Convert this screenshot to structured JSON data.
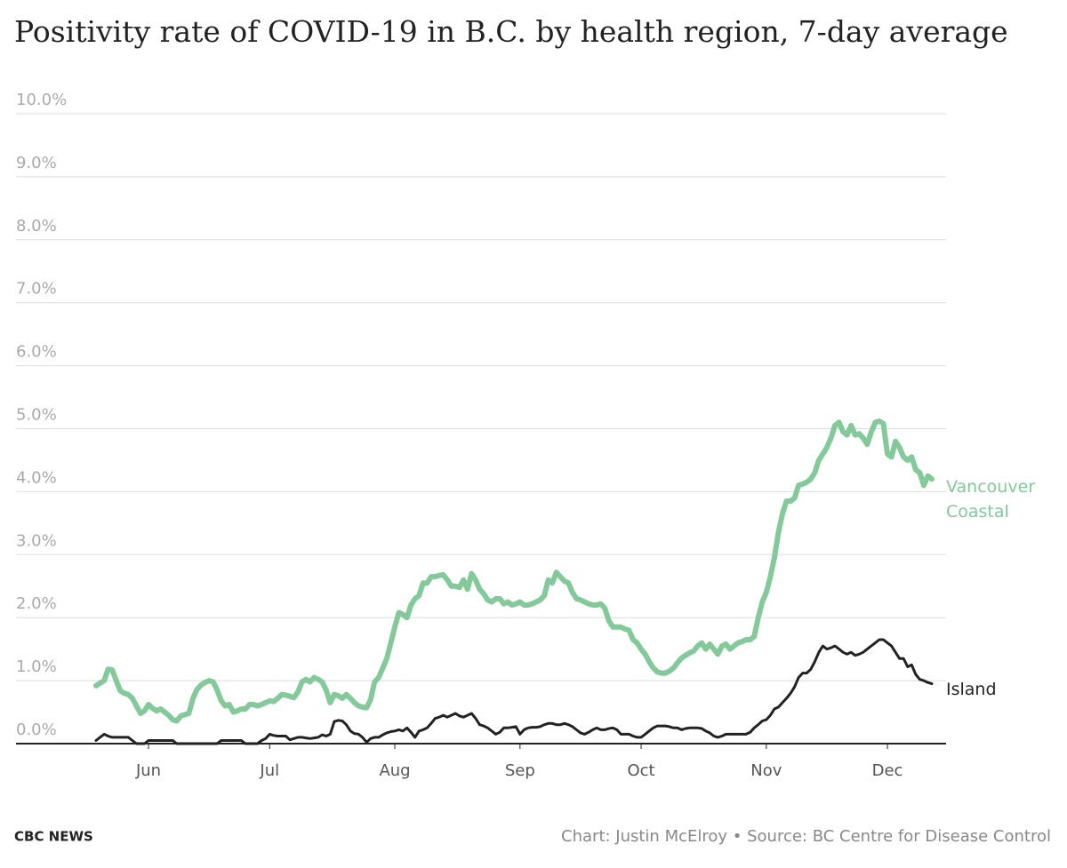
{
  "chart_data": {
    "type": "line",
    "title": "Positivity rate of COVID-19 in B.C. by health region, 7-day average",
    "source": "Chart: Justin McElroy • Source: BC Centre for Disease Control",
    "brand": "CBC NEWS",
    "categories": [
      null,
      null,
      null,
      null,
      null,
      null,
      null,
      null,
      null,
      null,
      null,
      null,
      null,
      "Jun",
      null,
      null,
      null,
      null,
      null,
      null,
      null,
      null,
      null,
      null,
      null,
      null,
      null,
      null,
      null,
      null,
      null,
      null,
      null,
      null,
      null,
      null,
      null,
      null,
      null,
      null,
      null,
      null,
      null,
      "Jul",
      null,
      null,
      null,
      null,
      null,
      null,
      null,
      null,
      null,
      null,
      null,
      null,
      null,
      null,
      null,
      null,
      null,
      null,
      null,
      null,
      null,
      null,
      null,
      null,
      null,
      null,
      null,
      null,
      null,
      null,
      "Aug",
      null,
      null,
      null,
      null,
      null,
      null,
      null,
      null,
      null,
      null,
      null,
      null,
      null,
      null,
      null,
      null,
      null,
      null,
      null,
      null,
      null,
      null,
      null,
      null,
      null,
      null,
      null,
      null,
      null,
      null,
      "Sep",
      null,
      null,
      null,
      null,
      null,
      null,
      null,
      null,
      null,
      null,
      null,
      null,
      null,
      null,
      null,
      null,
      null,
      null,
      null,
      null,
      null,
      null,
      null,
      null,
      null,
      null,
      null,
      null,
      null,
      "Oct",
      null,
      null,
      null,
      null,
      null,
      null,
      null,
      null,
      null,
      null,
      null,
      null,
      null,
      null,
      null,
      null,
      null,
      null,
      null,
      null,
      null,
      null,
      null,
      null,
      null,
      null,
      null,
      null,
      null,
      null,
      "Nov",
      null,
      null,
      null,
      null,
      null,
      null,
      null,
      null,
      null,
      null,
      null,
      null,
      null,
      null,
      null,
      null,
      null,
      null,
      null,
      null,
      null,
      null,
      null,
      null,
      null,
      null,
      null,
      null,
      null,
      "Dec",
      null,
      null,
      null,
      null,
      null,
      null,
      null,
      null,
      null,
      null,
      null
    ],
    "series": [
      {
        "name": "Vancouver Coastal",
        "color": "#83c99a",
        "values": [
          0.92,
          0.96,
          1.0,
          1.18,
          1.17,
          1.0,
          0.84,
          0.8,
          0.78,
          0.72,
          0.6,
          0.48,
          0.52,
          0.62,
          0.56,
          0.52,
          0.55,
          0.5,
          0.45,
          0.38,
          0.36,
          0.44,
          0.46,
          0.48,
          0.72,
          0.86,
          0.93,
          0.97,
          1.0,
          0.98,
          0.85,
          0.68,
          0.6,
          0.62,
          0.5,
          0.52,
          0.55,
          0.55,
          0.62,
          0.62,
          0.6,
          0.62,
          0.65,
          0.68,
          0.67,
          0.72,
          0.78,
          0.77,
          0.75,
          0.73,
          0.82,
          0.98,
          1.02,
          0.98,
          1.05,
          1.02,
          0.98,
          0.85,
          0.65,
          0.78,
          0.76,
          0.72,
          0.78,
          0.72,
          0.65,
          0.6,
          0.58,
          0.57,
          0.7,
          0.98,
          1.05,
          1.2,
          1.35,
          1.6,
          1.85,
          2.08,
          2.05,
          2.0,
          2.2,
          2.3,
          2.35,
          2.55,
          2.55,
          2.65,
          2.65,
          2.67,
          2.68,
          2.6,
          2.5,
          2.5,
          2.48,
          2.6,
          2.45,
          2.7,
          2.6,
          2.45,
          2.38,
          2.28,
          2.25,
          2.3,
          2.3,
          2.22,
          2.25,
          2.2,
          2.22,
          2.25,
          2.2,
          2.2,
          2.22,
          2.25,
          2.28,
          2.35,
          2.6,
          2.55,
          2.72,
          2.65,
          2.58,
          2.55,
          2.4,
          2.3,
          2.28,
          2.25,
          2.22,
          2.2,
          2.2,
          2.22,
          2.15,
          1.95,
          1.85,
          1.85,
          1.85,
          1.82,
          1.8,
          1.65,
          1.6,
          1.5,
          1.42,
          1.3,
          1.2,
          1.14,
          1.12,
          1.12,
          1.15,
          1.2,
          1.28,
          1.36,
          1.4,
          1.44,
          1.47,
          1.55,
          1.6,
          1.5,
          1.58,
          1.5,
          1.42,
          1.55,
          1.58,
          1.5,
          1.55,
          1.6,
          1.62,
          1.65,
          1.65,
          1.7,
          2.0,
          2.25,
          2.4,
          2.65,
          2.95,
          3.35,
          3.65,
          3.85,
          3.85,
          3.9,
          4.1,
          4.12,
          4.15,
          4.2,
          4.3,
          4.5,
          4.6,
          4.7,
          4.85,
          5.05,
          5.1,
          4.95,
          4.9,
          5.05,
          4.9,
          4.92,
          4.85,
          4.75,
          4.95,
          5.1,
          5.12,
          5.08,
          4.6,
          4.55,
          4.8,
          4.7,
          4.55,
          4.5,
          4.55,
          4.35,
          4.3,
          4.1,
          4.25,
          4.2
        ]
      },
      {
        "name": "Island",
        "color": "#222222",
        "values": [
          0.05,
          0.1,
          0.15,
          0.12,
          0.1,
          0.1,
          0.1,
          0.1,
          0.1,
          0.05,
          0.0,
          0.0,
          0.0,
          0.05,
          0.05,
          0.05,
          0.05,
          0.05,
          0.05,
          0.05,
          0.0,
          0.0,
          0.0,
          0.0,
          0.0,
          0.0,
          0.0,
          0.0,
          0.0,
          0.0,
          0.0,
          0.05,
          0.05,
          0.05,
          0.05,
          0.05,
          0.05,
          0.0,
          0.0,
          0.0,
          0.0,
          0.05,
          0.08,
          0.15,
          0.13,
          0.12,
          0.12,
          0.12,
          0.06,
          0.08,
          0.1,
          0.1,
          0.09,
          0.08,
          0.09,
          0.1,
          0.14,
          0.12,
          0.15,
          0.35,
          0.37,
          0.36,
          0.3,
          0.2,
          0.16,
          0.15,
          0.1,
          0.02,
          0.08,
          0.1,
          0.1,
          0.14,
          0.17,
          0.19,
          0.2,
          0.22,
          0.2,
          0.25,
          0.18,
          0.1,
          0.2,
          0.22,
          0.25,
          0.32,
          0.4,
          0.42,
          0.45,
          0.42,
          0.45,
          0.48,
          0.44,
          0.42,
          0.45,
          0.48,
          0.4,
          0.3,
          0.28,
          0.25,
          0.2,
          0.15,
          0.18,
          0.25,
          0.25,
          0.26,
          0.27,
          0.15,
          0.22,
          0.25,
          0.26,
          0.26,
          0.27,
          0.3,
          0.32,
          0.32,
          0.3,
          0.3,
          0.32,
          0.3,
          0.27,
          0.22,
          0.17,
          0.15,
          0.18,
          0.22,
          0.25,
          0.22,
          0.22,
          0.24,
          0.25,
          0.22,
          0.15,
          0.15,
          0.15,
          0.12,
          0.1,
          0.1,
          0.15,
          0.2,
          0.25,
          0.28,
          0.28,
          0.28,
          0.27,
          0.25,
          0.25,
          0.22,
          0.24,
          0.25,
          0.25,
          0.25,
          0.24,
          0.2,
          0.17,
          0.12,
          0.1,
          0.12,
          0.15,
          0.15,
          0.15,
          0.15,
          0.15,
          0.15,
          0.18,
          0.25,
          0.3,
          0.36,
          0.38,
          0.45,
          0.55,
          0.58,
          0.65,
          0.72,
          0.8,
          0.9,
          1.05,
          1.12,
          1.12,
          1.18,
          1.3,
          1.45,
          1.55,
          1.5,
          1.52,
          1.55,
          1.5,
          1.45,
          1.42,
          1.45,
          1.4,
          1.42,
          1.45,
          1.5,
          1.55,
          1.6,
          1.65,
          1.65,
          1.6,
          1.55,
          1.45,
          1.35,
          1.35,
          1.22,
          1.25,
          1.1,
          1.02,
          1.0,
          0.97,
          0.95
        ]
      }
    ],
    "ylim": [
      0,
      10
    ],
    "yticks": [
      {
        "value": 0,
        "label": "0.0%"
      },
      {
        "value": 1,
        "label": "1.0%"
      },
      {
        "value": 2,
        "label": "2.0%"
      },
      {
        "value": 3,
        "label": "3.0%"
      },
      {
        "value": 4,
        "label": "4.0%"
      },
      {
        "value": 5,
        "label": "5.0%"
      },
      {
        "value": 6,
        "label": "6.0%"
      },
      {
        "value": 7,
        "label": "7.0%"
      },
      {
        "value": 8,
        "label": "8.0%"
      },
      {
        "value": 9,
        "label": "9.0%"
      },
      {
        "value": 10,
        "label": "10.0%"
      }
    ],
    "grid": true
  }
}
